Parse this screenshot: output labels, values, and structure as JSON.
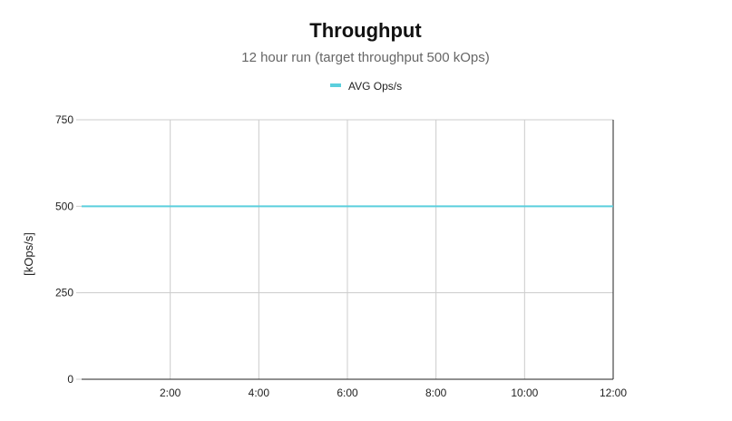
{
  "chart_data": {
    "type": "line",
    "title": "Throughput",
    "subtitle": "12 hour run (target throughput 500 kOps)",
    "ylabel": "[kOps/s]",
    "xlabel": "",
    "x_ticks": [
      "2:00",
      "4:00",
      "6:00",
      "8:00",
      "10:00",
      "12:00"
    ],
    "y_ticks": [
      "0",
      "250",
      "500",
      "750"
    ],
    "xlim": [
      0,
      12
    ],
    "ylim": [
      0,
      750
    ],
    "grid": true,
    "legend_position": "top-center",
    "series": [
      {
        "name": "AVG Ops/s",
        "color": "#5bcfdd",
        "x": [
          0,
          2,
          4,
          6,
          8,
          10,
          12
        ],
        "values": [
          500,
          500,
          500,
          500,
          500,
          500,
          500
        ]
      }
    ]
  }
}
